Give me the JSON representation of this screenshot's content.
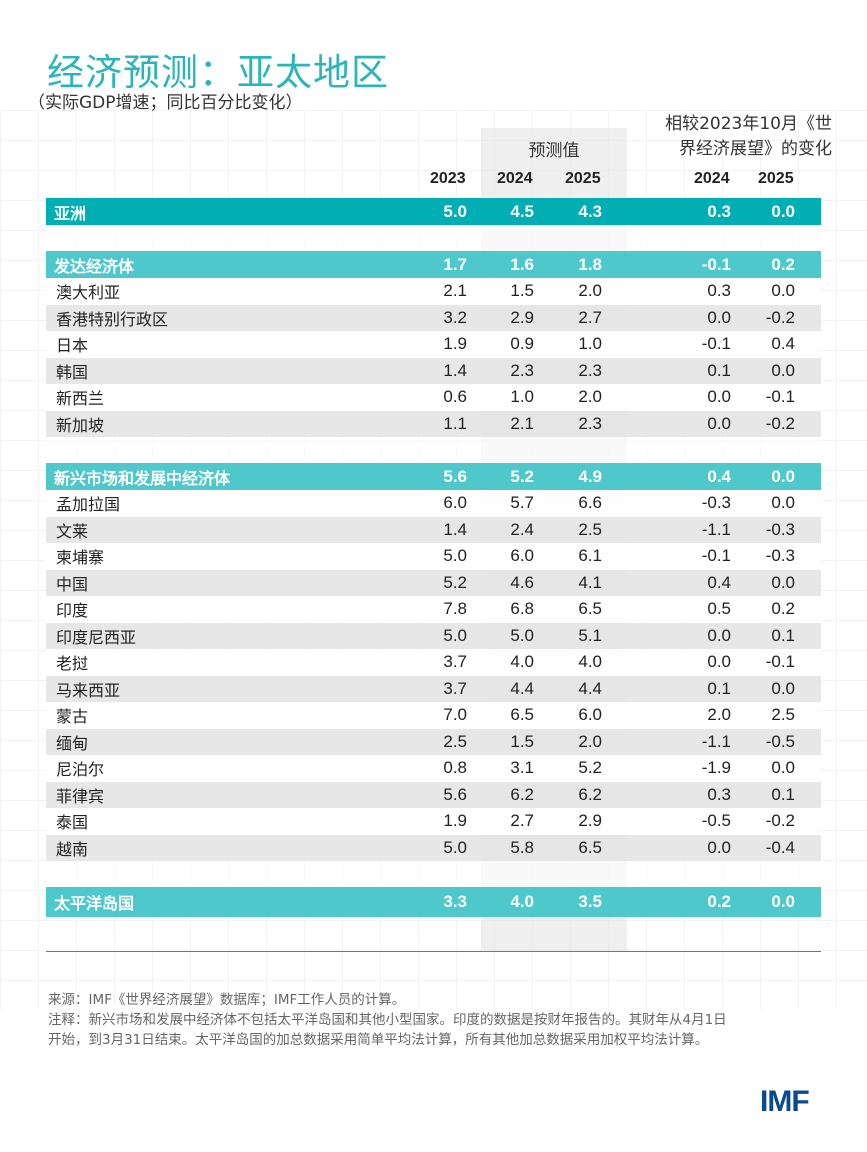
{
  "title": "经济预测：亚太地区",
  "subtitle": "（实际GDP增速；同比百分比变化）",
  "forecast_label": "预测值",
  "change_label_line1": "相较2023年10月《世",
  "change_label_line2": "界经济展望》的变化",
  "columns": [
    "2023",
    "2024",
    "2025",
    "2024",
    "2025"
  ],
  "colors": {
    "title": "#2bb5b8",
    "asia_row": "#00aeb3",
    "group_row": "#4fc8cc",
    "logo": "#0b4a8f"
  },
  "rows": [
    {
      "name": "亚洲",
      "type": "asia",
      "v": [
        "5.0",
        "4.5",
        "4.3",
        "0.3",
        "0.0"
      ]
    },
    {
      "type": "blank"
    },
    {
      "name": "发达经济体",
      "type": "grp",
      "v": [
        "1.7",
        "1.6",
        "1.8",
        "-0.1",
        "0.2"
      ]
    },
    {
      "name": "澳大利亚",
      "type": "white",
      "v": [
        "2.1",
        "1.5",
        "2.0",
        "0.3",
        "0.0"
      ]
    },
    {
      "name": "香港特别行政区",
      "type": "alt",
      "v": [
        "3.2",
        "2.9",
        "2.7",
        "0.0",
        "-0.2"
      ]
    },
    {
      "name": "日本",
      "type": "white",
      "v": [
        "1.9",
        "0.9",
        "1.0",
        "-0.1",
        "0.4"
      ]
    },
    {
      "name": "韩国",
      "type": "alt",
      "v": [
        "1.4",
        "2.3",
        "2.3",
        "0.1",
        "0.0"
      ]
    },
    {
      "name": "新西兰",
      "type": "white",
      "v": [
        "0.6",
        "1.0",
        "2.0",
        "0.0",
        "-0.1"
      ]
    },
    {
      "name": "新加坡",
      "type": "alt",
      "v": [
        "1.1",
        "2.1",
        "2.3",
        "0.0",
        "-0.2"
      ]
    },
    {
      "type": "blank"
    },
    {
      "name": "新兴市场和发展中经济体",
      "type": "grp",
      "v": [
        "5.6",
        "5.2",
        "4.9",
        "0.4",
        "0.0"
      ]
    },
    {
      "name": "孟加拉国",
      "type": "white",
      "v": [
        "6.0",
        "5.7",
        "6.6",
        "-0.3",
        "0.0"
      ]
    },
    {
      "name": "文莱",
      "type": "alt",
      "v": [
        "1.4",
        "2.4",
        "2.5",
        "-1.1",
        "-0.3"
      ]
    },
    {
      "name": "柬埔寨",
      "type": "white",
      "v": [
        "5.0",
        "6.0",
        "6.1",
        "-0.1",
        "-0.3"
      ]
    },
    {
      "name": "中国",
      "type": "alt",
      "v": [
        "5.2",
        "4.6",
        "4.1",
        "0.4",
        "0.0"
      ]
    },
    {
      "name": "印度",
      "type": "white",
      "v": [
        "7.8",
        "6.8",
        "6.5",
        "0.5",
        "0.2"
      ]
    },
    {
      "name": "印度尼西亚",
      "type": "alt",
      "v": [
        "5.0",
        "5.0",
        "5.1",
        "0.0",
        "0.1"
      ]
    },
    {
      "name": "老挝",
      "type": "white",
      "v": [
        "3.7",
        "4.0",
        "4.0",
        "0.0",
        "-0.1"
      ]
    },
    {
      "name": "马来西亚",
      "type": "alt",
      "v": [
        "3.7",
        "4.4",
        "4.4",
        "0.1",
        "0.0"
      ]
    },
    {
      "name": "蒙古",
      "type": "white",
      "v": [
        "7.0",
        "6.5",
        "6.0",
        "2.0",
        "2.5"
      ]
    },
    {
      "name": "缅甸",
      "type": "alt",
      "v": [
        "2.5",
        "1.5",
        "2.0",
        "-1.1",
        "-0.5"
      ]
    },
    {
      "name": "尼泊尔",
      "type": "white",
      "v": [
        "0.8",
        "3.1",
        "5.2",
        "-1.9",
        "0.0"
      ]
    },
    {
      "name": "菲律宾",
      "type": "alt",
      "v": [
        "5.6",
        "6.2",
        "6.2",
        "0.3",
        "0.1"
      ]
    },
    {
      "name": "泰国",
      "type": "white",
      "v": [
        "1.9",
        "2.7",
        "2.9",
        "-0.5",
        "-0.2"
      ]
    },
    {
      "name": "越南",
      "type": "alt",
      "v": [
        "5.0",
        "5.8",
        "6.5",
        "0.0",
        "-0.4"
      ]
    },
    {
      "type": "blank"
    },
    {
      "name": "太平洋岛国",
      "type": "grp pac",
      "v": [
        "3.3",
        "4.0",
        "3.5",
        "0.2",
        "0.0"
      ]
    }
  ],
  "notes": {
    "source": "来源：IMF《世界经济展望》数据库；IMF工作人员的计算。",
    "note": "注释：新兴市场和发展中经济体不包括太平洋岛国和其他小型国家。印度的数据是按财年报告的。其财年从4月1日开始，到3月31日结束。太平洋岛国的加总数据采用简单平均法计算，所有其他加总数据采用加权平均法计算。"
  },
  "logo": "IMF"
}
